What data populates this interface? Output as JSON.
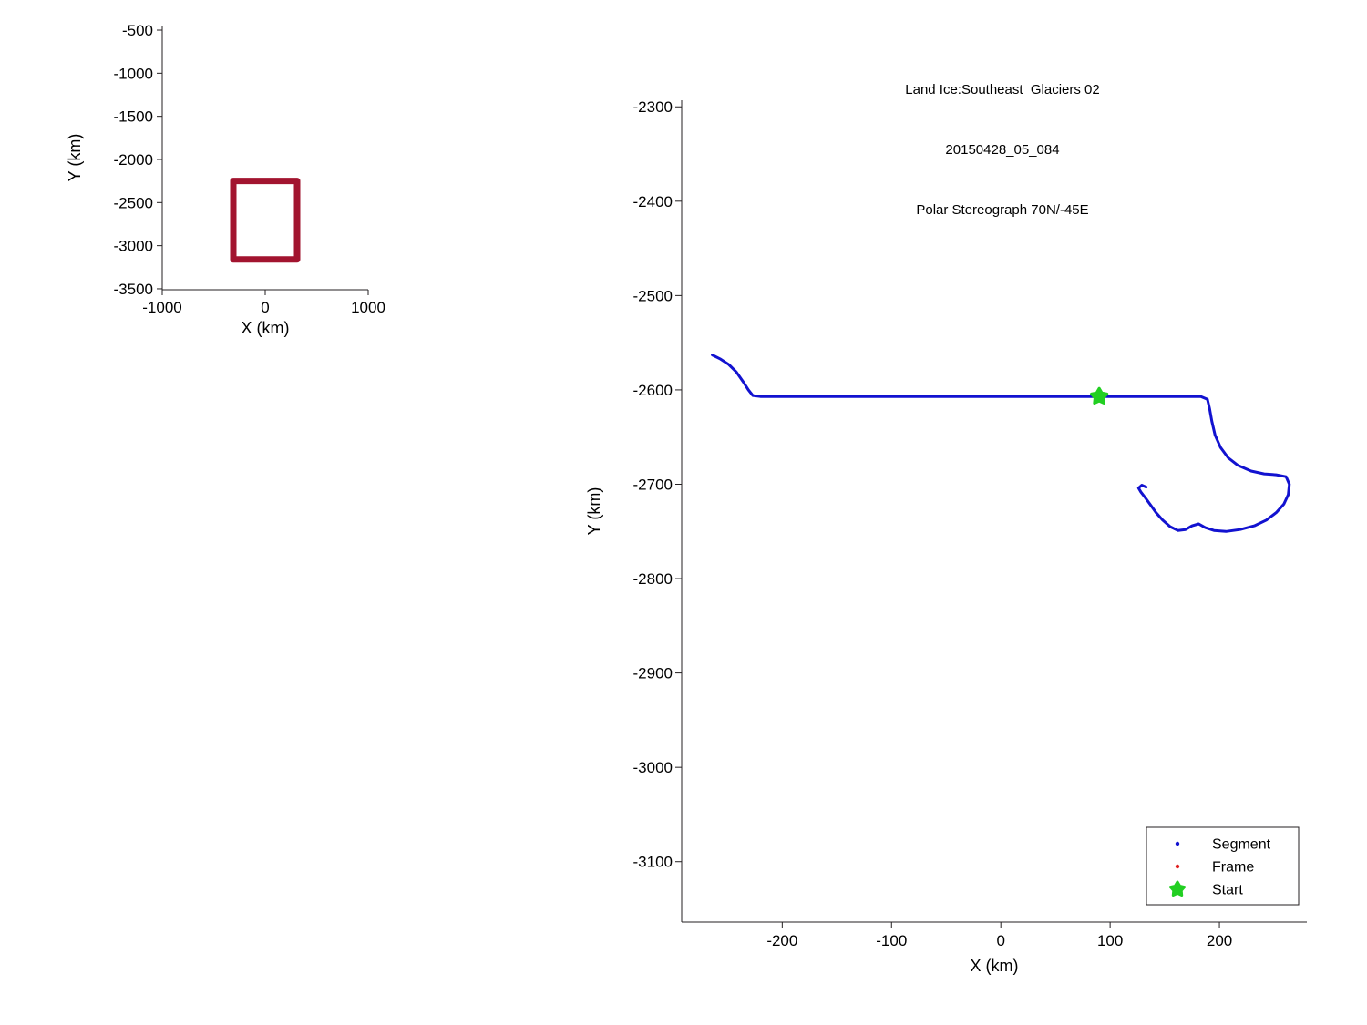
{
  "figure": {
    "background": "#ffffff"
  },
  "chart_data": [
    {
      "id": "overview-inset",
      "type": "line",
      "title": [],
      "xlabel": "X (km)",
      "ylabel": "Y (km)",
      "xlim": [
        -1000,
        1000
      ],
      "ylim": [
        -3511,
        -447
      ],
      "xticks": [
        -1000,
        0,
        1000
      ],
      "yticks": [
        -500,
        -1000,
        -1500,
        -2000,
        -2500,
        -3000,
        -3500
      ],
      "grid": false,
      "series": [
        {
          "name": "survey-region-outline",
          "color": "#A2142F",
          "width": 7,
          "points": [
            [
              -310,
              -2250
            ],
            [
              310,
              -2250
            ],
            [
              310,
              -3160
            ],
            [
              -310,
              -3160
            ],
            [
              -310,
              -2250
            ]
          ]
        }
      ]
    },
    {
      "id": "flight-track",
      "type": "line",
      "title": [
        "Land Ice:Southeast  Glaciers 02",
        "20150428_05_084",
        "Polar Stereograph 70N/-45E"
      ],
      "xlabel": "X (km)",
      "ylabel": "Y (km)",
      "xlim": [
        -292,
        280
      ],
      "ylim": [
        -3164,
        -2293
      ],
      "xticks": [
        -200,
        -100,
        0,
        100,
        200
      ],
      "yticks": [
        -2300,
        -2400,
        -2500,
        -2600,
        -2700,
        -2800,
        -2900,
        -3000,
        -3100
      ],
      "grid": false,
      "legend": {
        "position": "bottom-right",
        "entries": [
          {
            "label": "Segment",
            "marker": "dot",
            "color": "#1212D0"
          },
          {
            "label": "Frame",
            "marker": "dot",
            "color": "#E02020"
          },
          {
            "label": "Start",
            "marker": "star",
            "color": "#22CF22"
          }
        ]
      },
      "series": [
        {
          "name": "segment-track",
          "color": "#1212D0",
          "width": 3,
          "points": [
            [
              -264,
              -2563
            ],
            [
              -257,
              -2567
            ],
            [
              -249,
              -2573
            ],
            [
              -242,
              -2581
            ],
            [
              -236,
              -2591
            ],
            [
              -231,
              -2600
            ],
            [
              -227,
              -2606
            ],
            [
              -220,
              -2607
            ],
            [
              -180,
              -2607
            ],
            [
              -140,
              -2607
            ],
            [
              -100,
              -2607
            ],
            [
              -60,
              -2607
            ],
            [
              -20,
              -2607
            ],
            [
              20,
              -2607
            ],
            [
              60,
              -2607
            ],
            [
              90,
              -2607
            ],
            [
              130,
              -2607
            ],
            [
              160,
              -2607
            ],
            [
              183,
              -2607
            ],
            [
              189,
              -2610
            ],
            [
              191,
              -2620
            ],
            [
              193,
              -2633
            ],
            [
              196,
              -2648
            ],
            [
              201,
              -2661
            ],
            [
              208,
              -2672
            ],
            [
              217,
              -2680
            ],
            [
              229,
              -2686
            ],
            [
              241,
              -2689
            ],
            [
              252,
              -2690
            ],
            [
              261,
              -2692
            ],
            [
              264,
              -2700
            ],
            [
              263,
              -2711
            ],
            [
              259,
              -2721
            ],
            [
              252,
              -2730
            ],
            [
              243,
              -2738
            ],
            [
              232,
              -2744
            ],
            [
              219,
              -2748
            ],
            [
              206,
              -2750
            ],
            [
              195,
              -2749
            ],
            [
              187,
              -2746
            ],
            [
              181,
              -2742
            ],
            [
              175,
              -2744
            ],
            [
              169,
              -2748
            ],
            [
              162,
              -2749
            ],
            [
              155,
              -2745
            ],
            [
              148,
              -2738
            ],
            [
              142,
              -2730
            ],
            [
              137,
              -2722
            ],
            [
              132,
              -2714
            ],
            [
              128,
              -2708
            ],
            [
              126,
              -2704
            ],
            [
              129,
              -2701
            ],
            [
              133,
              -2703
            ]
          ]
        },
        {
          "name": "start-marker",
          "type": "marker",
          "marker": "star",
          "color": "#22CF22",
          "size": 9,
          "points": [
            [
              90,
              -2607
            ]
          ]
        }
      ]
    }
  ]
}
